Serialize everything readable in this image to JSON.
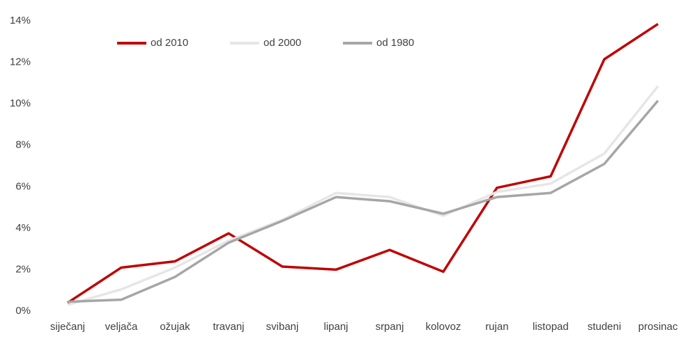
{
  "chart_data": {
    "type": "line",
    "categories": [
      "siječanj",
      "veljača",
      "ožujak",
      "travanj",
      "svibanj",
      "lipanj",
      "srpanj",
      "kolovoz",
      "rujan",
      "listopad",
      "studeni",
      "prosinac"
    ],
    "series": [
      {
        "name": "od 2010",
        "color": "#c00000",
        "values": [
          0.4,
          2.1,
          2.4,
          3.75,
          2.15,
          2.0,
          2.95,
          1.9,
          5.95,
          6.5,
          12.15,
          13.85
        ]
      },
      {
        "name": "od 2000",
        "color": "#e6e6e6",
        "values": [
          0.3,
          1.05,
          2.1,
          3.4,
          4.4,
          5.7,
          5.5,
          4.6,
          5.75,
          6.15,
          7.6,
          10.85
        ]
      },
      {
        "name": "od 1980",
        "color": "#a6a6a6",
        "values": [
          0.45,
          0.55,
          1.65,
          3.3,
          4.35,
          5.5,
          5.3,
          4.7,
          5.5,
          5.7,
          7.1,
          10.15
        ]
      }
    ],
    "ylim": [
      0,
      14
    ],
    "yticks": [
      {
        "value": 0,
        "label": "0%"
      },
      {
        "value": 2,
        "label": "2%"
      },
      {
        "value": 4,
        "label": "4%"
      },
      {
        "value": 6,
        "label": "6%"
      },
      {
        "value": 8,
        "label": "8%"
      },
      {
        "value": 10,
        "label": "10%"
      },
      {
        "value": 12,
        "label": "12%"
      },
      {
        "value": 14,
        "label": "14%"
      }
    ],
    "grid": false,
    "legend": "top"
  }
}
